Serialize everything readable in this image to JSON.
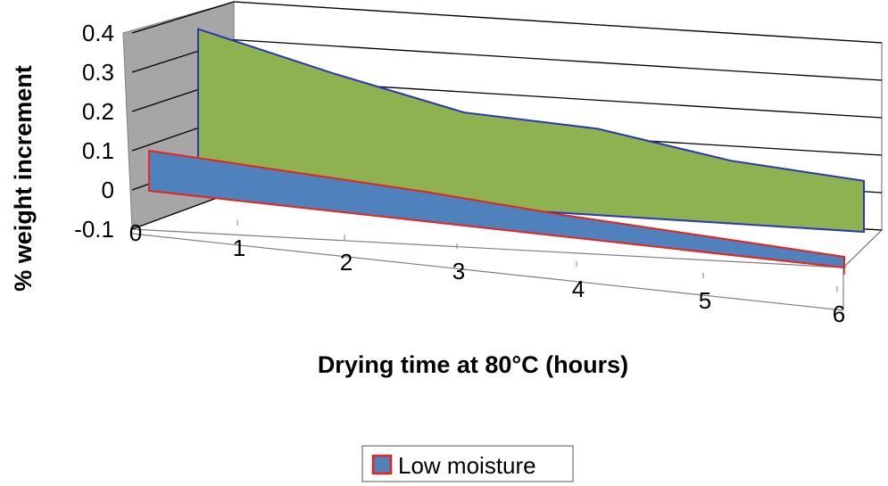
{
  "chart_data": {
    "type": "area",
    "title": "",
    "xlabel": "Drying time at 80°C (hours)",
    "ylabel": "% weight increment",
    "x": [
      1,
      2,
      3,
      4,
      5,
      6
    ],
    "x_tick_labels": [
      "0",
      "1",
      "2",
      "3",
      "4",
      "5",
      "6"
    ],
    "y_tick_labels": [
      "-0.1",
      "0",
      "0.1",
      "0.2",
      "0.3",
      "0.4"
    ],
    "ylim": [
      -0.1,
      0.4
    ],
    "grid": true,
    "legend_position": "bottom",
    "series": [
      {
        "name": "",
        "values": [
          0.31,
          0.22,
          0.14,
          0.12,
          0.06,
          0.03
        ],
        "color": "#8db24f",
        "top_color": "#6b8a3a",
        "edge_color": "#2a36b8"
      },
      {
        "name": "Low moisture",
        "values": [
          0.05,
          0.03,
          0.01,
          -0.02,
          -0.04,
          -0.06
        ],
        "color": "#4f81bd",
        "top_color": "#3d6aa3",
        "edge_color": "#e8231c"
      }
    ]
  }
}
